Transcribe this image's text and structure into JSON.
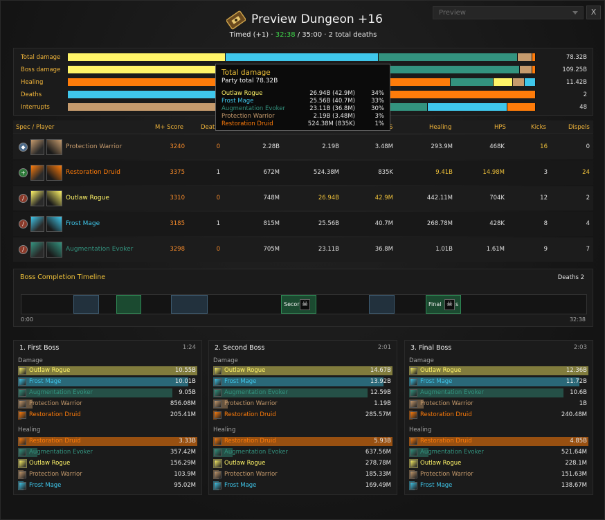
{
  "colors": {
    "rogue": "#fff468",
    "mage": "#3fc7eb",
    "evoker": "#33937f",
    "warrior": "#c69b6d",
    "druid": "#ff7c0a",
    "gold": "#f0c23a",
    "orange": "#f58a2a",
    "green": "#3fd84a"
  },
  "header": {
    "title": "Preview Dungeon +16",
    "sub_prefix": "Timed (+1) · ",
    "sub_time": "32:38",
    "sub_suffix": " / 35:00 · 2 total deaths",
    "icon": "dungeon-key-icon",
    "dropdown_value": "Preview",
    "close_label": "X"
  },
  "summary": [
    {
      "label": "Total damage",
      "value": "78.32B",
      "segments": [
        {
          "c": "rogue",
          "v": 34
        },
        {
          "c": "mage",
          "v": 33
        },
        {
          "c": "evoker",
          "v": 30
        },
        {
          "c": "warrior",
          "v": 3
        },
        {
          "c": "druid",
          "v": 0.6
        }
      ]
    },
    {
      "label": "Boss damage",
      "value": "109.25B",
      "segments": [
        {
          "c": "rogue",
          "v": 34
        },
        {
          "c": "mage",
          "v": 33
        },
        {
          "c": "evoker",
          "v": 30
        },
        {
          "c": "warrior",
          "v": 2.5
        },
        {
          "c": "druid",
          "v": 0.6
        }
      ]
    },
    {
      "label": "Healing",
      "value": "11.42B",
      "segments": [
        {
          "c": "druid",
          "v": 82
        },
        {
          "c": "evoker",
          "v": 9
        },
        {
          "c": "rogue",
          "v": 4
        },
        {
          "c": "warrior",
          "v": 2.3
        },
        {
          "c": "mage",
          "v": 2.3
        }
      ]
    },
    {
      "label": "Deaths",
      "value": "2",
      "segments": [
        {
          "c": "mage",
          "v": 50
        },
        {
          "c": "druid",
          "v": 50
        }
      ]
    },
    {
      "label": "Interrupts",
      "value": "48",
      "segments": [
        {
          "c": "warrior",
          "v": 33
        },
        {
          "c": "rogue",
          "v": 25
        },
        {
          "c": "evoker",
          "v": 19
        },
        {
          "c": "mage",
          "v": 17
        },
        {
          "c": "druid",
          "v": 6
        }
      ]
    }
  ],
  "tooltip": {
    "title": "Total damage",
    "total": "Party total 78.32B",
    "rows": [
      {
        "name": "Outlaw Rogue",
        "cls": "rogue",
        "value": "26.94B (42.9M)",
        "pct": "34%"
      },
      {
        "name": "Frost Mage",
        "cls": "mage",
        "value": "25.56B (40.7M)",
        "pct": "33%"
      },
      {
        "name": "Augmentation Evoker",
        "cls": "evoker",
        "value": "23.11B (36.8M)",
        "pct": "30%"
      },
      {
        "name": "Protection Warrior",
        "cls": "warrior",
        "value": "2.19B (3.48M)",
        "pct": "3%"
      },
      {
        "name": "Restoration Druid",
        "cls": "druid",
        "value": "524.38M (835K)",
        "pct": "1%"
      }
    ]
  },
  "table": {
    "headers": {
      "spec": "Spec / Player",
      "score": "M+ Score",
      "deaths": "Deaths",
      "dps_visible": "S",
      "healing": "Healing",
      "hps": "HPS",
      "kicks": "Kicks",
      "dispels": "Dispels"
    },
    "rows": [
      {
        "name": "Protection Warrior",
        "cls": "warrior",
        "role": "tank-role-icon",
        "icon1": "shield-wall-icon",
        "icon2": "protection-shield-icon",
        "score": "3240",
        "deaths": "0",
        "dmg": "2.28B",
        "boss": "2.19B",
        "dps": "3.48M",
        "healing": "293.9M",
        "hps": "468K",
        "kicks": "16",
        "dispels": "0",
        "kicks_gold": true
      },
      {
        "name": "Restoration Druid",
        "cls": "druid",
        "role": "healer-role-icon",
        "icon1": "druid-crest-icon",
        "icon2": "leaf-icon",
        "score": "3375",
        "deaths": "1",
        "dmg": "672M",
        "boss": "524.38M",
        "dps": "835K",
        "healing": "9.41B",
        "hps": "14.98M",
        "kicks": "3",
        "dispels": "24",
        "heal_gold": true,
        "dispels_gold": true
      },
      {
        "name": "Outlaw Rogue",
        "cls": "rogue",
        "role": "dps-role-icon",
        "icon1": "sword-icon",
        "icon2": "pistol-icon",
        "score": "3310",
        "deaths": "0",
        "dmg": "748M",
        "boss": "26.94B",
        "dps": "42.9M",
        "healing": "442.11M",
        "hps": "704K",
        "kicks": "12",
        "dispels": "2",
        "boss_gold": true
      },
      {
        "name": "Frost Mage",
        "cls": "mage",
        "role": "dps-role-icon",
        "icon1": "fire-staff-icon",
        "icon2": "frost-bolt-icon",
        "score": "3185",
        "deaths": "1",
        "dmg": "815M",
        "boss": "25.56B",
        "dps": "40.7M",
        "healing": "268.78M",
        "hps": "428K",
        "kicks": "8",
        "dispels": "4"
      },
      {
        "name": "Augmentation Evoker",
        "cls": "evoker",
        "role": "dps-role-icon",
        "icon1": "dragon-claw-icon",
        "icon2": "augmentation-icon",
        "score": "3298",
        "deaths": "0",
        "dmg": "705M",
        "boss": "23.11B",
        "dps": "36.8M",
        "healing": "1.01B",
        "hps": "1.61M",
        "kicks": "9",
        "dispels": "7"
      }
    ]
  },
  "timeline": {
    "title": "Boss Completion Timeline",
    "deaths": "Deaths 2",
    "start": "0:00",
    "end": "32:38",
    "segments": [
      {
        "type": "blue",
        "label": ""
      },
      {
        "type": "green",
        "label": ""
      },
      {
        "type": "blue",
        "label": ""
      },
      {
        "type": "green",
        "label": "Secor",
        "skull": true
      },
      {
        "type": "blue",
        "label": ""
      },
      {
        "type": "green",
        "label": "Final",
        "skull": true,
        "suffix": "s"
      }
    ]
  },
  "bosses": [
    {
      "title": "1. First Boss",
      "time": "1:24",
      "damage_label": "Damage",
      "healing_label": "Healing",
      "damage": [
        {
          "name": "Outlaw Rogue",
          "cls": "rogue",
          "value": "10.55B",
          "pct": 100
        },
        {
          "name": "Frost Mage",
          "cls": "mage",
          "value": "10.01B",
          "pct": 95
        },
        {
          "name": "Augmentation Evoker",
          "cls": "evoker",
          "value": "9.05B",
          "pct": 86
        },
        {
          "name": "Protection Warrior",
          "cls": "warrior",
          "value": "856.08M",
          "pct": 8
        },
        {
          "name": "Restoration Druid",
          "cls": "druid",
          "value": "205.41M",
          "pct": 2
        }
      ],
      "healing": [
        {
          "name": "Restoration Druid",
          "cls": "druid",
          "value": "3.33B",
          "pct": 100
        },
        {
          "name": "Augmentation Evoker",
          "cls": "evoker",
          "value": "357.42M",
          "pct": 11
        },
        {
          "name": "Outlaw Rogue",
          "cls": "rogue",
          "value": "156.29M",
          "pct": 5
        },
        {
          "name": "Protection Warrior",
          "cls": "warrior",
          "value": "103.9M",
          "pct": 3
        },
        {
          "name": "Frost Mage",
          "cls": "mage",
          "value": "95.02M",
          "pct": 3
        }
      ]
    },
    {
      "title": "2. Second Boss",
      "time": "2:01",
      "damage_label": "Damage",
      "healing_label": "Healing",
      "damage": [
        {
          "name": "Outlaw Rogue",
          "cls": "rogue",
          "value": "14.67B",
          "pct": 100
        },
        {
          "name": "Frost Mage",
          "cls": "mage",
          "value": "13.92B",
          "pct": 95
        },
        {
          "name": "Augmentation Evoker",
          "cls": "evoker",
          "value": "12.59B",
          "pct": 86
        },
        {
          "name": "Protection Warrior",
          "cls": "warrior",
          "value": "1.19B",
          "pct": 8
        },
        {
          "name": "Restoration Druid",
          "cls": "druid",
          "value": "285.57M",
          "pct": 2
        }
      ],
      "healing": [
        {
          "name": "Restoration Druid",
          "cls": "druid",
          "value": "5.93B",
          "pct": 100
        },
        {
          "name": "Augmentation Evoker",
          "cls": "evoker",
          "value": "637.56M",
          "pct": 11
        },
        {
          "name": "Outlaw Rogue",
          "cls": "rogue",
          "value": "278.78M",
          "pct": 5
        },
        {
          "name": "Protection Warrior",
          "cls": "warrior",
          "value": "185.33M",
          "pct": 3
        },
        {
          "name": "Frost Mage",
          "cls": "mage",
          "value": "169.49M",
          "pct": 3
        }
      ]
    },
    {
      "title": "3. Final Boss",
      "time": "2:03",
      "damage_label": "Damage",
      "healing_label": "Healing",
      "damage": [
        {
          "name": "Outlaw Rogue",
          "cls": "rogue",
          "value": "12.36B",
          "pct": 100
        },
        {
          "name": "Frost Mage",
          "cls": "mage",
          "value": "11.72B",
          "pct": 95
        },
        {
          "name": "Augmentation Evoker",
          "cls": "evoker",
          "value": "10.6B",
          "pct": 86
        },
        {
          "name": "Protection Warrior",
          "cls": "warrior",
          "value": "1B",
          "pct": 8
        },
        {
          "name": "Restoration Druid",
          "cls": "druid",
          "value": "240.48M",
          "pct": 2
        }
      ],
      "healing": [
        {
          "name": "Restoration Druid",
          "cls": "druid",
          "value": "4.85B",
          "pct": 100
        },
        {
          "name": "Augmentation Evoker",
          "cls": "evoker",
          "value": "521.64M",
          "pct": 11
        },
        {
          "name": "Outlaw Rogue",
          "cls": "rogue",
          "value": "228.1M",
          "pct": 5
        },
        {
          "name": "Protection Warrior",
          "cls": "warrior",
          "value": "151.63M",
          "pct": 3
        },
        {
          "name": "Frost Mage",
          "cls": "mage",
          "value": "138.67M",
          "pct": 3
        }
      ]
    }
  ]
}
